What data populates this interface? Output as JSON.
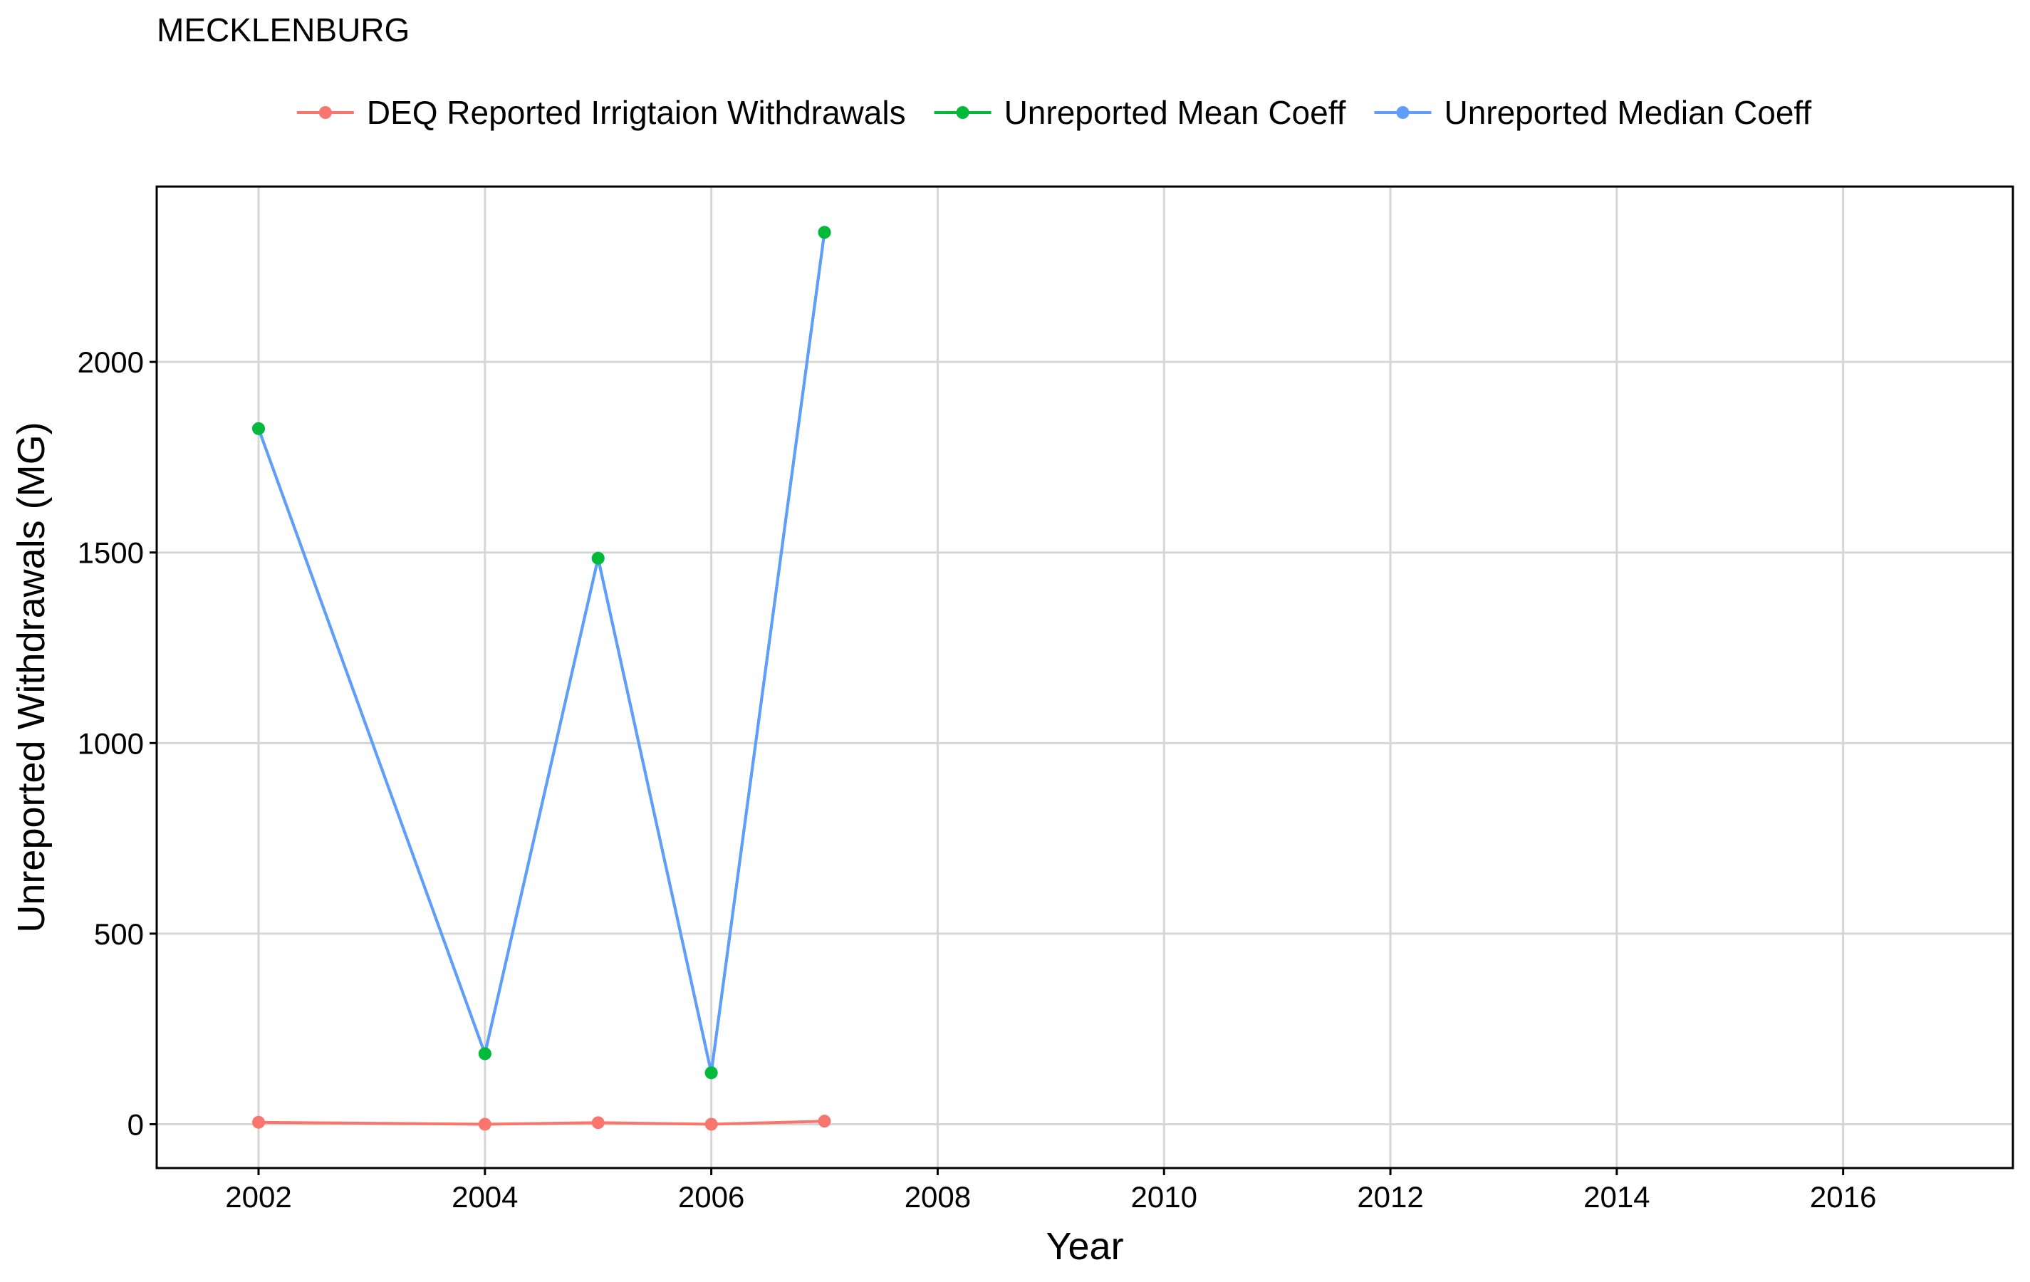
{
  "chart_data": {
    "type": "line",
    "title": "MECKLENBURG",
    "xlabel": "Year",
    "ylabel": "Unreported Withdrawals (MG)",
    "xlim": [
      2001.1,
      2017.5
    ],
    "ylim": [
      -115,
      2460
    ],
    "x_ticks": [
      2002,
      2004,
      2006,
      2008,
      2010,
      2012,
      2014,
      2016
    ],
    "y_ticks": [
      0,
      500,
      1000,
      1500,
      2000
    ],
    "grid": true,
    "legend_position": "top",
    "series": [
      {
        "name": "DEQ Reported Irrigtaion Withdrawals",
        "color": "#F8766D",
        "points": [
          [
            2002,
            5
          ],
          [
            2004,
            0
          ],
          [
            2005,
            4
          ],
          [
            2006,
            0
          ],
          [
            2007,
            8
          ]
        ]
      },
      {
        "name": "Unreported Mean Coeff",
        "color": "#00BA38",
        "points": [
          [
            2002,
            1825
          ],
          [
            2004,
            185
          ],
          [
            2005,
            1485
          ],
          [
            2006,
            135
          ],
          [
            2007,
            2340
          ]
        ]
      },
      {
        "name": "Unreported Median Coeff",
        "color": "#619CFF",
        "points": [
          [
            2002,
            1825
          ],
          [
            2004,
            185
          ],
          [
            2005,
            1485
          ],
          [
            2006,
            135
          ],
          [
            2007,
            2340
          ]
        ]
      }
    ]
  }
}
